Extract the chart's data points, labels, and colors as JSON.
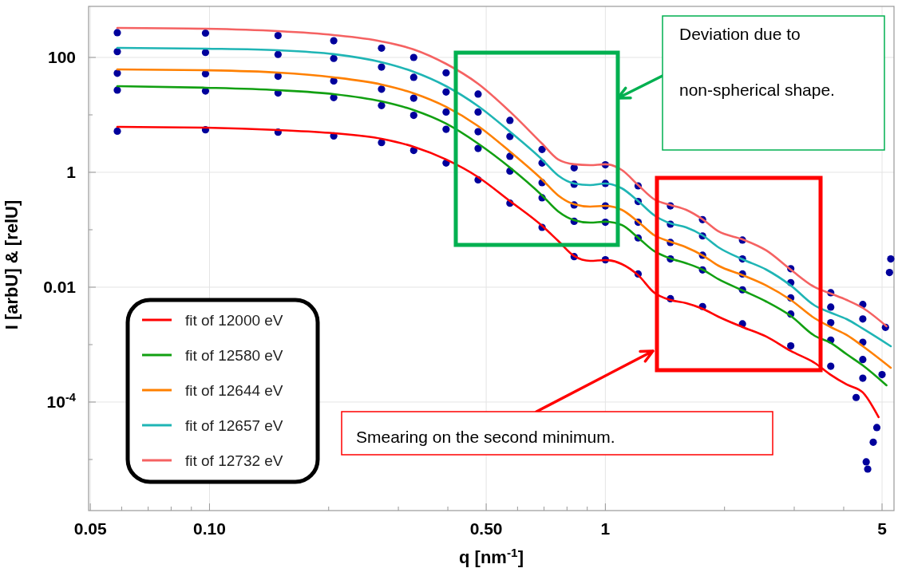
{
  "chart_data": {
    "type": "line",
    "xlabel": "q [nm$^{-1}$]",
    "ylabel": "I [arbU] & [relU]",
    "log": "xy",
    "grid": true,
    "legend": "bottom left",
    "xlim": [
      0.0495,
      5.36
    ],
    "ylim": [
      1.29e-06,
      774
    ],
    "xticks": [
      0.05,
      {
        "value": 0.06,
        "label": null
      },
      {
        "value": 0.07,
        "label": null
      },
      {
        "value": 0.08,
        "label": null
      },
      {
        "value": 0.09,
        "label": null
      },
      {
        "value": 0.1,
        "label": "0.10"
      },
      {
        "value": 0.2,
        "label": null
      },
      {
        "value": 0.3,
        "label": null
      },
      {
        "value": 0.4,
        "label": null
      },
      {
        "value": 0.5,
        "label": "0.50"
      },
      {
        "value": 0.6,
        "label": null
      },
      {
        "value": 0.7,
        "label": null
      },
      {
        "value": 0.8,
        "label": null
      },
      {
        "value": 0.9,
        "label": null
      },
      1,
      {
        "value": 2,
        "label": null
      },
      {
        "value": 3,
        "label": null
      },
      {
        "value": 4,
        "label": null
      },
      5
    ],
    "yticks": [
      {
        "value": 1e-05,
        "label": null
      },
      {
        "value": 0.0001,
        "label": "10$^{-4}$"
      },
      {
        "value": 0.001,
        "label": null
      },
      0.01,
      {
        "value": 0.1,
        "label": null
      },
      1,
      {
        "value": 10,
        "label": null
      },
      100
    ],
    "annotations": [
      "Deviation due to non-spherical shape.",
      "Smearing on the second minimum."
    ],
    "series": [
      {
        "type": "scatter",
        "marker": "circle",
        "color": "#00009c",
        "x": [
          0.0585,
          0.0977,
          0.149,
          0.206,
          0.272,
          0.328,
          0.396,
          0.477,
          0.574,
          0.692,
          0.834,
          1.0,
          1.21,
          1.46,
          1.76,
          2.22,
          2.94,
          3.71,
          4.47
        ],
        "values": [
          5.2,
          5.5,
          5.0,
          4.3,
          3.3,
          2.4,
          1.45,
          0.74,
          0.29,
          0.11,
          0.034,
          0.03,
          0.017,
          0.0063,
          0.0046,
          0.0023,
          0.00095,
          0.00042,
          0.00026
        ]
      },
      {
        "type": "scatter",
        "marker": "circle",
        "color": "#00009c",
        "x": [
          0.0585,
          0.0977,
          0.149,
          0.206,
          0.272,
          0.328,
          0.396,
          0.477,
          0.574,
          0.692,
          0.834,
          1.0,
          1.21,
          1.46,
          1.76,
          2.22,
          2.94,
          3.71,
          4.47
        ],
        "values": [
          27,
          26,
          24,
          20,
          14.5,
          9.8,
          5.6,
          2.6,
          1.05,
          0.36,
          0.14,
          0.135,
          0.072,
          0.031,
          0.02,
          0.009,
          0.0034,
          0.0012,
          0.00055
        ]
      },
      {
        "type": "scatter",
        "marker": "circle",
        "color": "#00009c",
        "x": [
          0.0585,
          0.0977,
          0.149,
          0.206,
          0.272,
          0.328,
          0.396,
          0.477,
          0.574,
          0.692,
          0.834,
          1.0,
          1.21,
          1.46,
          1.76,
          2.22,
          2.94,
          3.71,
          4.47
        ],
        "values": [
          53,
          52,
          47,
          39,
          28,
          19.5,
          11.2,
          5.1,
          1.9,
          0.66,
          0.27,
          0.26,
          0.135,
          0.06,
          0.036,
          0.017,
          0.0065,
          0.0024,
          0.0011
        ]
      },
      {
        "type": "scatter",
        "marker": "circle",
        "color": "#00009c",
        "x": [
          0.0585,
          0.0977,
          0.149,
          0.206,
          0.272,
          0.328,
          0.396,
          0.477,
          0.574,
          0.692,
          0.834,
          1.0,
          1.21,
          1.46,
          1.76,
          2.22,
          2.94,
          3.71,
          4.47
        ],
        "values": [
          126,
          122,
          113,
          96,
          68,
          45,
          25,
          11.2,
          4.2,
          1.45,
          0.62,
          0.64,
          0.31,
          0.125,
          0.078,
          0.031,
          0.012,
          0.0045,
          0.0028
        ]
      },
      {
        "type": "scatter",
        "marker": "circle",
        "color": "#00009c",
        "x": [
          0.0585,
          0.0977,
          0.149,
          0.206,
          0.272,
          0.328,
          0.396,
          0.477,
          0.574,
          0.692,
          0.834,
          1.0,
          1.21,
          1.46,
          1.76,
          2.22,
          2.94,
          3.71,
          4.47
        ],
        "values": [
          270,
          265,
          240,
          195,
          145,
          100,
          54,
          23,
          8,
          2.5,
          1.2,
          1.35,
          0.58,
          0.26,
          0.15,
          0.066,
          0.021,
          0.008,
          0.005
        ]
      },
      {
        "type": "scatter",
        "marker": "circle",
        "color": "#00009c",
        "x": [
          4.3,
          4.56,
          4.6,
          4.75,
          4.85,
          5.0,
          5.1,
          5.26,
          5.22
        ],
        "values": [
          0.00012,
          9.1e-06,
          6.8e-06,
          2e-05,
          3.6e-05,
          0.0003,
          0.002,
          0.031,
          0.018
        ]
      },
      {
        "name": "fit of 12000 eV",
        "color": "#ff0000",
        "x": [
          0.0585,
          0.0977,
          0.149,
          0.206,
          0.272,
          0.328,
          0.396,
          0.477,
          0.574,
          0.692,
          0.76,
          0.834,
          0.915,
          1.0,
          1.1,
          1.21,
          1.33,
          1.46,
          1.6,
          1.76,
          1.93,
          2.22,
          2.55,
          2.94,
          3.38,
          3.71,
          4.07,
          4.47,
          4.9
        ],
        "values": [
          6.19,
          5.99,
          5.45,
          4.79,
          3.83,
          2.78,
          1.67,
          0.825,
          0.316,
          0.117,
          0.0639,
          0.0348,
          0.0287,
          0.0297,
          0.0253,
          0.0162,
          0.00799,
          0.00599,
          0.00528,
          0.00422,
          0.00306,
          0.00202,
          0.00138,
          0.000774,
          0.000479,
          0.000297,
          0.000202,
          0.000147,
          5.45e-05
        ]
      },
      {
        "name": "fit of 12580 eV",
        "color": "#12a012",
        "x": [
          0.0585,
          0.0977,
          0.149,
          0.206,
          0.272,
          0.328,
          0.396,
          0.477,
          0.574,
          0.692,
          0.76,
          0.834,
          0.915,
          1.0,
          1.1,
          1.21,
          1.33,
          1.46,
          1.6,
          1.76,
          1.93,
          2.22,
          2.55,
          2.94,
          3.38,
          3.71,
          4.07,
          4.47,
          5.13
        ],
        "values": [
          31.6,
          29.7,
          26.9,
          23.0,
          17.2,
          12.1,
          7.04,
          3.16,
          1.21,
          0.396,
          0.209,
          0.147,
          0.133,
          0.138,
          0.121,
          0.0726,
          0.0422,
          0.0316,
          0.0261,
          0.0202,
          0.0138,
          0.0088,
          0.00562,
          0.00316,
          0.00142,
          0.00107,
          0.000681,
          0.000435,
          0.000196
        ]
      },
      {
        "name": "fit of 12644 eV",
        "color": "#ff8000",
        "x": [
          0.0585,
          0.0977,
          0.149,
          0.206,
          0.272,
          0.328,
          0.396,
          0.477,
          0.574,
          0.692,
          0.76,
          0.834,
          0.915,
          1.0,
          1.1,
          1.21,
          1.33,
          1.46,
          1.6,
          1.76,
          1.93,
          2.22,
          2.55,
          2.94,
          3.38,
          3.71,
          4.07,
          4.47,
          5.26
        ],
        "values": [
          61.9,
          59.9,
          54.5,
          45.0,
          33.7,
          23.7,
          13.8,
          6.39,
          2.3,
          0.75,
          0.396,
          0.278,
          0.253,
          0.261,
          0.222,
          0.138,
          0.0799,
          0.0619,
          0.0495,
          0.0359,
          0.0237,
          0.0162,
          0.0107,
          0.00599,
          0.00287,
          0.00202,
          0.00147,
          0.000938,
          0.000396
        ]
      },
      {
        "name": "fit of 12657 eV",
        "color": "#1fb5b5",
        "x": [
          0.0585,
          0.0977,
          0.149,
          0.206,
          0.272,
          0.328,
          0.396,
          0.477,
          0.574,
          0.692,
          0.76,
          0.834,
          0.915,
          1.0,
          1.1,
          1.21,
          1.33,
          1.46,
          1.6,
          1.76,
          1.93,
          2.22,
          2.55,
          2.94,
          3.38,
          3.71,
          4.07,
          4.47,
          5.26
        ],
        "values": [
          147,
          142,
          133,
          114,
          82.5,
          56.2,
          31.6,
          14.2,
          5.11,
          1.67,
          0.88,
          0.639,
          0.599,
          0.639,
          0.527,
          0.316,
          0.178,
          0.129,
          0.11,
          0.0799,
          0.0495,
          0.0306,
          0.0202,
          0.0107,
          0.00479,
          0.00359,
          0.00278,
          0.0019,
          0.000938
        ]
      },
      {
        "name": "fit of 12732 eV",
        "color": "#f56262",
        "x": [
          0.0585,
          0.0977,
          0.149,
          0.206,
          0.272,
          0.328,
          0.396,
          0.477,
          0.574,
          0.692,
          0.76,
          0.834,
          0.915,
          1.0,
          1.1,
          1.21,
          1.33,
          1.46,
          1.6,
          1.76,
          1.93,
          2.22,
          2.55,
          2.94,
          3.38,
          3.71,
          4.07,
          4.47,
          5.13
        ],
        "values": [
          327,
          316,
          287,
          245,
          190,
          138,
          77.4,
          34.8,
          11.4,
          3.16,
          1.67,
          1.38,
          1.33,
          1.38,
          1.1,
          0.599,
          0.337,
          0.27,
          0.222,
          0.152,
          0.0938,
          0.0681,
          0.0436,
          0.0202,
          0.01,
          0.00774,
          0.00599,
          0.00435,
          0.00209
        ]
      }
    ]
  }
}
